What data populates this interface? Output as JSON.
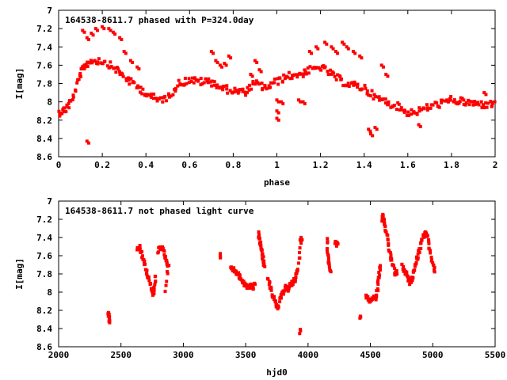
{
  "chart_data": [
    {
      "type": "scatter",
      "title": "164538-8611.7 phased with P=324.0day",
      "xlabel": "phase",
      "ylabel": "I[mag]",
      "xlim": [
        0,
        2
      ],
      "ylim": [
        8.6,
        7.0
      ],
      "y_inverted": true,
      "grid": false,
      "point_color": "#ff0000",
      "x_ticks": [
        "0",
        "0.2",
        "0.4",
        "0.6",
        "0.8",
        "1",
        "1.2",
        "1.4",
        "1.6",
        "1.8",
        "2"
      ],
      "y_ticks": [
        "7",
        "7.2",
        "7.4",
        "7.6",
        "7.8",
        "8",
        "8.2",
        "8.4",
        "8.6"
      ],
      "trend": [
        [
          0.0,
          8.12
        ],
        [
          0.03,
          8.08
        ],
        [
          0.06,
          7.98
        ],
        [
          0.1,
          7.7
        ],
        [
          0.12,
          7.6
        ],
        [
          0.15,
          7.55
        ],
        [
          0.2,
          7.55
        ],
        [
          0.25,
          7.62
        ],
        [
          0.3,
          7.72
        ],
        [
          0.35,
          7.82
        ],
        [
          0.4,
          7.9
        ],
        [
          0.45,
          7.98
        ],
        [
          0.5,
          7.95
        ],
        [
          0.55,
          7.8
        ],
        [
          0.6,
          7.76
        ],
        [
          0.65,
          7.78
        ],
        [
          0.7,
          7.78
        ],
        [
          0.75,
          7.85
        ],
        [
          0.8,
          7.88
        ],
        [
          0.85,
          7.9
        ],
        [
          0.9,
          7.8
        ],
        [
          0.95,
          7.85
        ],
        [
          1.0,
          7.78
        ],
        [
          1.05,
          7.72
        ],
        [
          1.1,
          7.7
        ],
        [
          1.15,
          7.66
        ],
        [
          1.2,
          7.62
        ],
        [
          1.25,
          7.7
        ],
        [
          1.3,
          7.78
        ],
        [
          1.35,
          7.82
        ],
        [
          1.4,
          7.85
        ],
        [
          1.45,
          7.95
        ],
        [
          1.5,
          8.0
        ],
        [
          1.55,
          8.05
        ],
        [
          1.6,
          8.12
        ],
        [
          1.65,
          8.1
        ],
        [
          1.7,
          8.05
        ],
        [
          1.75,
          8.02
        ],
        [
          1.8,
          7.98
        ],
        [
          1.85,
          8.0
        ],
        [
          1.9,
          8.02
        ],
        [
          1.95,
          8.03
        ],
        [
          2.0,
          8.03
        ]
      ],
      "extra_points": [
        [
          0.13,
          8.43
        ],
        [
          0.11,
          7.22
        ],
        [
          0.13,
          7.3
        ],
        [
          0.15,
          7.25
        ],
        [
          0.17,
          7.2
        ],
        [
          0.2,
          7.18
        ],
        [
          0.23,
          7.2
        ],
        [
          0.25,
          7.24
        ],
        [
          0.28,
          7.3
        ],
        [
          0.3,
          7.45
        ],
        [
          0.33,
          7.55
        ],
        [
          0.36,
          7.62
        ],
        [
          0.7,
          7.45
        ],
        [
          0.72,
          7.55
        ],
        [
          0.74,
          7.6
        ],
        [
          0.76,
          7.58
        ],
        [
          0.78,
          7.5
        ],
        [
          0.9,
          7.55
        ],
        [
          0.92,
          7.65
        ],
        [
          0.88,
          7.7
        ],
        [
          1.15,
          7.45
        ],
        [
          1.18,
          7.4
        ],
        [
          1.22,
          7.35
        ],
        [
          1.25,
          7.4
        ],
        [
          1.27,
          7.45
        ],
        [
          1.3,
          7.35
        ],
        [
          1.32,
          7.4
        ],
        [
          1.35,
          7.45
        ],
        [
          1.38,
          7.5
        ],
        [
          1.42,
          8.3
        ],
        [
          1.43,
          8.35
        ],
        [
          1.45,
          8.28
        ],
        [
          1.48,
          7.6
        ],
        [
          1.5,
          7.7
        ],
        [
          1.65,
          8.25
        ],
        [
          1.95,
          7.9
        ],
        [
          1.98,
          8.0
        ],
        [
          1.0,
          7.98
        ],
        [
          1.02,
          8.0
        ],
        [
          1.1,
          7.98
        ],
        [
          1.12,
          8.0
        ],
        [
          1.0,
          8.1
        ],
        [
          1.0,
          8.18
        ]
      ]
    },
    {
      "type": "scatter",
      "title": "164538-8611.7 not phased light curve",
      "xlabel": "hjd0",
      "ylabel": "I[mag]",
      "xlim": [
        2000,
        5500
      ],
      "ylim": [
        8.6,
        7.0
      ],
      "y_inverted": true,
      "grid": false,
      "point_color": "#ff0000",
      "x_ticks": [
        "2000",
        "2500",
        "3000",
        "3500",
        "4000",
        "4500",
        "5000",
        "5500"
      ],
      "y_ticks": [
        "7",
        "7.2",
        "7.4",
        "7.6",
        "7.8",
        "8",
        "8.2",
        "8.4",
        "8.6"
      ],
      "segments": [
        [
          [
            2400,
            8.22
          ],
          [
            2405,
            8.3
          ],
          [
            2410,
            8.35
          ]
        ],
        [
          [
            2630,
            7.55
          ],
          [
            2650,
            7.5
          ],
          [
            2670,
            7.6
          ],
          [
            2690,
            7.7
          ],
          [
            2710,
            7.8
          ],
          [
            2730,
            7.9
          ],
          [
            2750,
            7.98
          ],
          [
            2760,
            8.02
          ],
          [
            2770,
            7.95
          ],
          [
            2780,
            7.8
          ]
        ],
        [
          [
            2800,
            7.55
          ],
          [
            2820,
            7.5
          ],
          [
            2840,
            7.55
          ],
          [
            2860,
            7.65
          ],
          [
            2880,
            7.7
          ],
          [
            2850,
            8.05
          ]
        ],
        [
          [
            3300,
            7.6
          ]
        ],
        [
          [
            3380,
            7.72
          ],
          [
            3400,
            7.75
          ],
          [
            3420,
            7.78
          ],
          [
            3440,
            7.8
          ],
          [
            3460,
            7.85
          ],
          [
            3480,
            7.9
          ],
          [
            3500,
            7.92
          ],
          [
            3520,
            7.95
          ],
          [
            3540,
            7.92
          ],
          [
            3560,
            7.95
          ],
          [
            3580,
            7.9
          ]
        ],
        [
          [
            3600,
            7.35
          ],
          [
            3610,
            7.42
          ],
          [
            3620,
            7.5
          ],
          [
            3630,
            7.55
          ],
          [
            3640,
            7.65
          ],
          [
            3650,
            7.75
          ]
        ],
        [
          [
            3680,
            7.85
          ],
          [
            3700,
            7.95
          ],
          [
            3720,
            8.05
          ],
          [
            3740,
            8.12
          ],
          [
            3760,
            8.18
          ],
          [
            3780,
            8.05
          ],
          [
            3800,
            8.0
          ],
          [
            3820,
            7.95
          ],
          [
            3840,
            7.98
          ],
          [
            3860,
            7.92
          ],
          [
            3880,
            7.9
          ],
          [
            3900,
            7.85
          ],
          [
            3920,
            7.75
          ],
          [
            3940,
            7.45
          ],
          [
            3950,
            7.4
          ]
        ],
        [
          [
            3935,
            8.43
          ]
        ],
        [
          [
            4150,
            7.4
          ],
          [
            4160,
            7.6
          ],
          [
            4170,
            7.7
          ],
          [
            4180,
            7.8
          ]
        ],
        [
          [
            4220,
            7.45
          ],
          [
            4240,
            7.5
          ]
        ],
        [
          [
            4420,
            8.28
          ]
        ],
        [
          [
            4460,
            8.05
          ],
          [
            4480,
            8.08
          ],
          [
            4500,
            8.1
          ],
          [
            4520,
            8.05
          ],
          [
            4540,
            8.08
          ],
          [
            4560,
            7.95
          ],
          [
            4570,
            7.8
          ],
          [
            4580,
            7.7
          ]
        ],
        [
          [
            4590,
            7.2
          ],
          [
            4600,
            7.15
          ],
          [
            4610,
            7.22
          ],
          [
            4620,
            7.3
          ],
          [
            4640,
            7.45
          ],
          [
            4660,
            7.6
          ],
          [
            4680,
            7.7
          ],
          [
            4700,
            7.8
          ],
          [
            4720,
            7.78
          ]
        ],
        [
          [
            4750,
            7.7
          ],
          [
            4780,
            7.78
          ],
          [
            4800,
            7.85
          ],
          [
            4820,
            7.9
          ],
          [
            4840,
            7.82
          ],
          [
            4860,
            7.7
          ],
          [
            4880,
            7.6
          ],
          [
            4900,
            7.5
          ],
          [
            4920,
            7.4
          ],
          [
            4940,
            7.35
          ],
          [
            4960,
            7.4
          ],
          [
            4980,
            7.55
          ],
          [
            5000,
            7.7
          ],
          [
            5020,
            7.8
          ]
        ]
      ]
    }
  ]
}
